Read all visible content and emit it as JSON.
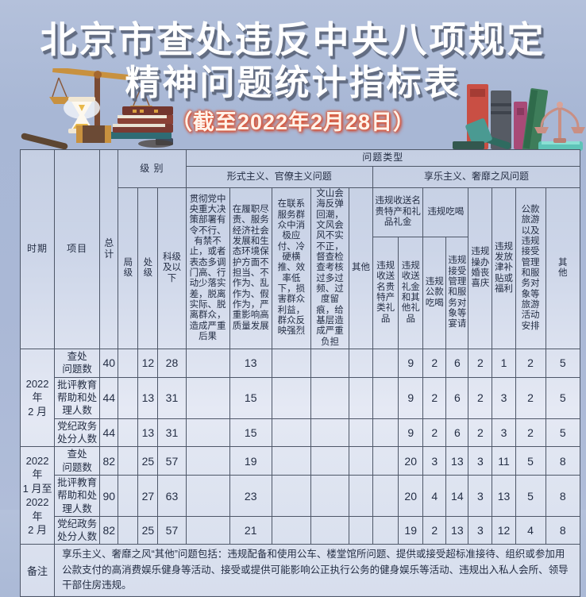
{
  "page": {
    "title_line1": "北京市查处违反中央八项规定",
    "title_line2": "精神问题统计指标表",
    "subtitle": "（截至2022年2月28日）"
  },
  "colors": {
    "background": "#a8b7d5",
    "table_border": "#4e5768",
    "table_fill": "#dbe1ef",
    "title_text": "#ffffff",
    "title_shadow": "#636d82",
    "subtitle_glow": "#dd5434"
  },
  "icons": {
    "left": [
      "scales-icon",
      "hourglass-icon",
      "book-stack-icon",
      "gavel-icon"
    ],
    "right": [
      "books-row-icon",
      "teal-gavel-icon",
      "scales-icon"
    ]
  },
  "table": {
    "header": {
      "period": "时期",
      "item": "项目",
      "total": "总计",
      "level_group": "级 别",
      "level_cols": [
        "局级",
        "处级",
        "科级及以下"
      ],
      "problem_type": "问题类型",
      "formalism_group": "形式主义、官僚主义问题",
      "formalism_cols": [
        "贯彻党中央重大决策部署有令不行、有禁不止，或者表态多调门高、行动少落实差，脱离实际、脱离群众，造成严重后果",
        "在履职尽责、服务经济社会发展和生态环境保护方面不担当、不作为、乱作为、假作为，严重影响高质量发展",
        "在联系服务群众中消极应付、冷硬横推、效率低下，损害群众利益，群众反映强烈",
        "文山会海反弹回潮，文风会风不实不正，督查检查考核过多过频、过度留痕，给基层造成严重负担",
        "其他"
      ],
      "hedonism_group": "享乐主义、奢靡之风问题",
      "gifts_parent": "违规收送名贵特产和礼品礼金",
      "gifts_cols": [
        "违规收送名贵特产类礼品",
        "违规收送礼金和其他礼品"
      ],
      "dining_parent": "违规吃喝",
      "dining_cols": [
        "违规公款吃喝",
        "违规接受管理和服务对象等宴请"
      ],
      "hedonism_cols": [
        "违规操办婚丧喜庆",
        "违规发放津补贴或福利",
        "公款旅游以及违规接受管理和服务对象等旅游活动安排",
        "其他"
      ]
    },
    "groups": [
      {
        "period": "2022 年\n2 月",
        "rows": [
          {
            "label": "查处\n问题数",
            "values": [
              "40",
              "",
              "12",
              "28",
              "",
              "13",
              "",
              "",
              "",
              "",
              "9",
              "2",
              "6",
              "2",
              "1",
              "2",
              "5"
            ]
          },
          {
            "label": "批评教育\n帮助和处\n理人数",
            "values": [
              "44",
              "",
              "13",
              "31",
              "",
              "15",
              "",
              "",
              "",
              "",
              "9",
              "2",
              "6",
              "2",
              "3",
              "2",
              "5"
            ]
          },
          {
            "label": "党纪政务\n处分人数",
            "values": [
              "44",
              "",
              "13",
              "31",
              "",
              "15",
              "",
              "",
              "",
              "",
              "9",
              "2",
              "6",
              "2",
              "3",
              "2",
              "5"
            ]
          }
        ]
      },
      {
        "period": "2022 年\n1 月至\n2022 年\n2 月",
        "rows": [
          {
            "label": "查处\n问题数",
            "values": [
              "82",
              "",
              "25",
              "57",
              "",
              "19",
              "",
              "",
              "",
              "",
              "20",
              "3",
              "13",
              "3",
              "11",
              "5",
              "8"
            ]
          },
          {
            "label": "批评教育\n帮助和处\n理人数",
            "values": [
              "90",
              "",
              "27",
              "63",
              "",
              "23",
              "",
              "",
              "",
              "",
              "20",
              "4",
              "14",
              "3",
              "13",
              "5",
              "8"
            ]
          },
          {
            "label": "党纪政务\n处分人数",
            "values": [
              "82",
              "",
              "25",
              "57",
              "",
              "21",
              "",
              "",
              "",
              "",
              "19",
              "2",
              "13",
              "3",
              "12",
              "4",
              "8"
            ]
          }
        ]
      }
    ],
    "note_label": "备注",
    "note": "享乐主义、奢靡之风“其他”问题包括：违规配备和使用公车、楼堂馆所问题、提供或接受超标准接待、组织或参加用公款支付的高消费娱乐健身等活动、接受或提供可能影响公正执行公务的健身娱乐等活动、违规出入私人会所、领导干部住房违规。"
  }
}
